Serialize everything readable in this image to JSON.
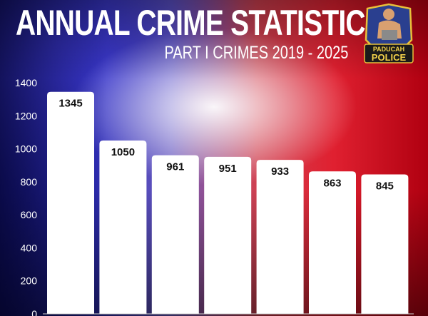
{
  "header": {
    "title": "ANNUAL CRIME STATISTICS",
    "subtitle": "PART I CRIMES 2019 - 2025"
  },
  "logo": {
    "text_top": "PADUCAH",
    "text_bottom": "POLICE",
    "colors": {
      "shield": "#2a3f8f",
      "border": "#e8c03a",
      "text": "#f3d24a"
    }
  },
  "colors": {
    "left": "#2b2bb0",
    "right": "#e02030",
    "bar": "#ffffff"
  },
  "chart_data": {
    "type": "bar",
    "title": "ANNUAL CRIME STATISTICS",
    "subtitle": "PART I CRIMES 2019 - 2025",
    "values": [
      1345,
      1050,
      961,
      951,
      933,
      863,
      845
    ],
    "ylim": [
      0,
      1400
    ],
    "yticks": [
      0,
      200,
      400,
      600,
      800,
      1000,
      1200,
      1400
    ],
    "grid": false,
    "data_labels": true
  }
}
